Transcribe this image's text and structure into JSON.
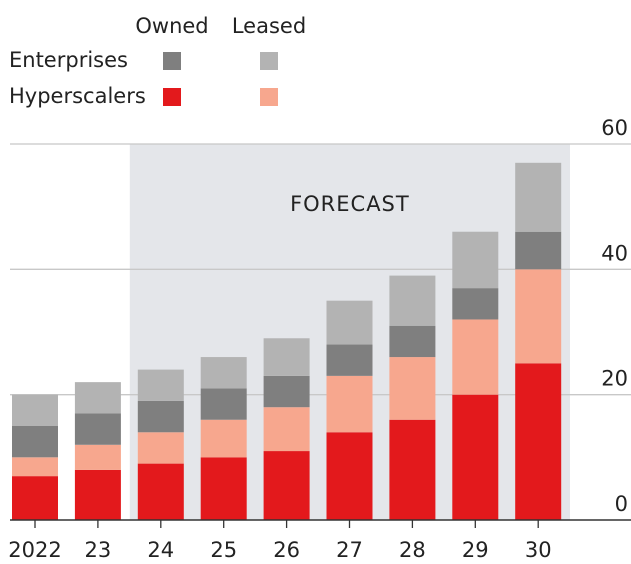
{
  "chart_data": {
    "type": "stacked_bar",
    "legend": {
      "columns": [
        "Owned",
        "Leased"
      ],
      "rows": [
        "Enterprises",
        "Hyperscalers"
      ]
    },
    "annotation": {
      "label": "FORECAST",
      "from": "24"
    },
    "categories": [
      "2022",
      "23",
      "24",
      "25",
      "26",
      "27",
      "28",
      "29",
      "30"
    ],
    "series": [
      {
        "color": "#e3191c",
        "values": [
          7,
          8,
          9,
          10,
          11,
          14,
          16,
          20,
          25
        ]
      },
      {
        "color": "#f7a78e",
        "values": [
          3,
          4,
          5,
          6,
          7,
          9,
          10,
          12,
          15
        ]
      },
      {
        "color": "#7f7f7f",
        "values": [
          5,
          5,
          5,
          5,
          5,
          5,
          5,
          5,
          6
        ]
      },
      {
        "color": "#b3b3b3",
        "values": [
          5,
          5,
          5,
          5,
          6,
          7,
          8,
          9,
          11
        ]
      }
    ],
    "ylim": [
      0,
      60
    ],
    "yticks": [
      0,
      20,
      40,
      60
    ],
    "grid": true
  }
}
